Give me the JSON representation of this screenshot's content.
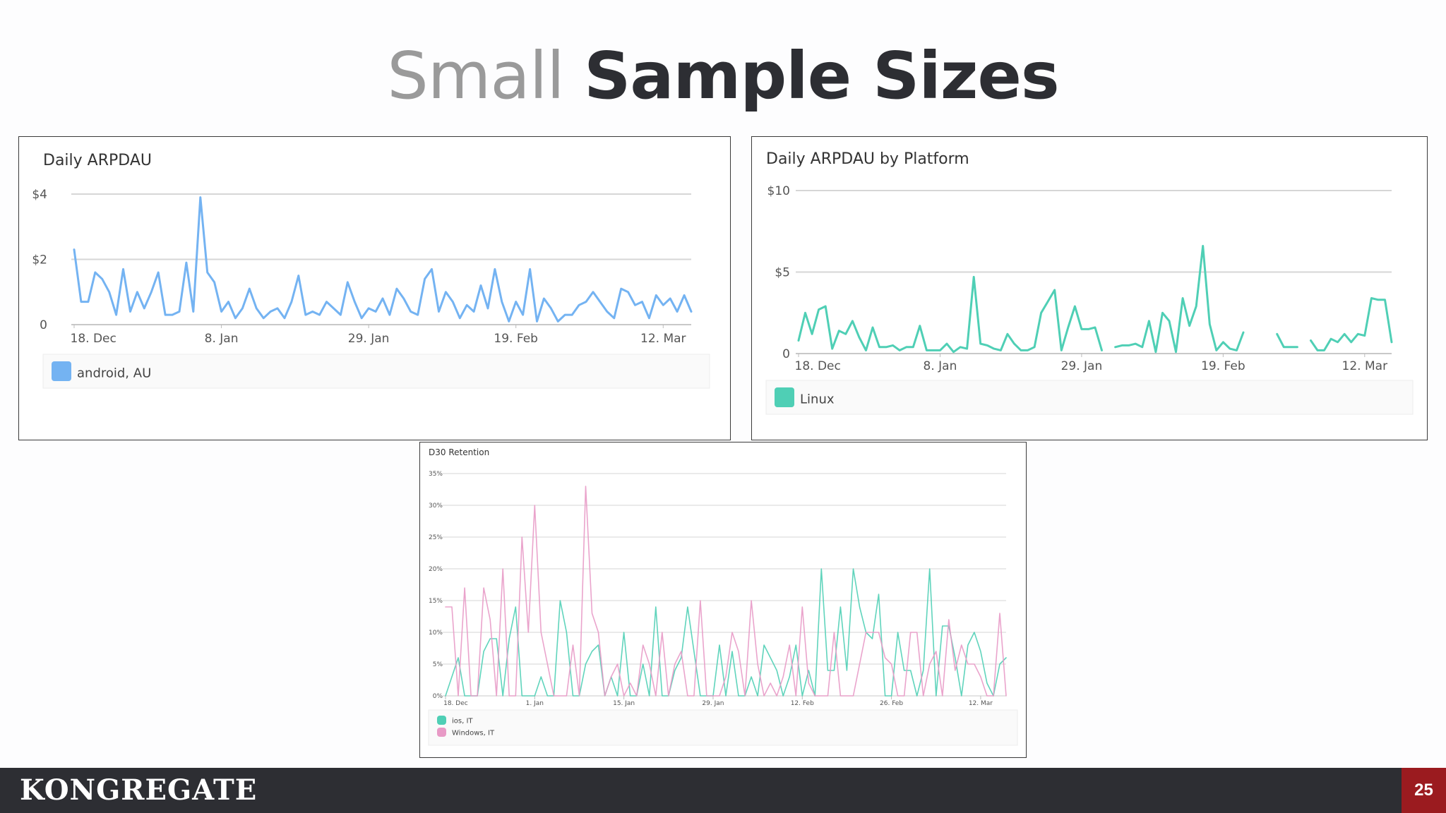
{
  "slide": {
    "title_light": "Small",
    "title_bold": "Sample Sizes",
    "brand": "KONGREGATE",
    "page_number": "25"
  },
  "chart_data": [
    {
      "type": "line",
      "title": "Daily ARPDAU",
      "y_ticks": [
        "0",
        "$2",
        "$4"
      ],
      "ylim": [
        0,
        4
      ],
      "x_ticks": [
        "18. Dec",
        "8. Jan",
        "29. Jan",
        "19. Feb",
        "12. Mar"
      ],
      "x_tick_index": [
        0,
        21,
        42,
        63,
        84
      ],
      "grid": true,
      "legend_position": "bottom",
      "color": "#74b3f2",
      "series": [
        {
          "name": "android, AU",
          "color": "#74b3f2",
          "values": [
            2.3,
            0.7,
            0.7,
            1.6,
            1.4,
            1.0,
            0.3,
            1.7,
            0.4,
            1.0,
            0.5,
            1.0,
            1.6,
            0.3,
            0.3,
            0.4,
            1.9,
            0.4,
            3.9,
            1.6,
            1.3,
            0.4,
            0.7,
            0.2,
            0.5,
            1.1,
            0.5,
            0.2,
            0.4,
            0.5,
            0.2,
            0.7,
            1.5,
            0.3,
            0.4,
            0.3,
            0.7,
            0.5,
            0.3,
            1.3,
            0.7,
            0.2,
            0.5,
            0.4,
            0.8,
            0.3,
            1.1,
            0.8,
            0.4,
            0.3,
            1.4,
            1.7,
            0.4,
            1.0,
            0.7,
            0.2,
            0.6,
            0.4,
            1.2,
            0.5,
            1.7,
            0.7,
            0.1,
            0.7,
            0.3,
            1.7,
            0.1,
            0.8,
            0.5,
            0.1,
            0.3,
            0.3,
            0.6,
            0.7,
            1.0,
            0.7,
            0.4,
            0.2,
            1.1,
            1.0,
            0.6,
            0.7,
            0.2,
            0.9,
            0.6,
            0.8,
            0.4,
            0.9,
            0.4
          ]
        }
      ]
    },
    {
      "type": "line",
      "title": "Daily ARPDAU by Platform",
      "y_ticks": [
        "0",
        "$5",
        "$10"
      ],
      "ylim": [
        0,
        10
      ],
      "x_ticks": [
        "18. Dec",
        "8. Jan",
        "29. Jan",
        "19. Feb",
        "12. Mar"
      ],
      "x_tick_index": [
        0,
        21,
        42,
        63,
        84
      ],
      "grid": true,
      "legend_position": "bottom",
      "color": "#4fcfb5",
      "series": [
        {
          "name": "Linux",
          "color": "#4fcfb5",
          "values": [
            0.8,
            2.5,
            1.2,
            2.7,
            2.9,
            0.3,
            1.4,
            1.2,
            2.0,
            1.0,
            0.2,
            1.6,
            0.4,
            0.4,
            0.5,
            0.2,
            0.4,
            0.4,
            1.7,
            0.2,
            0.2,
            0.2,
            0.6,
            0.1,
            0.4,
            0.3,
            4.7,
            0.6,
            0.5,
            0.3,
            0.2,
            1.2,
            0.6,
            0.2,
            0.2,
            0.4,
            2.5,
            3.2,
            3.9,
            0.2,
            1.6,
            2.9,
            1.5,
            1.5,
            1.6,
            0.2,
            null,
            0.4,
            0.5,
            0.5,
            0.6,
            0.4,
            2.0,
            0.1,
            2.5,
            2.0,
            0.1,
            3.4,
            1.7,
            2.9,
            6.6,
            1.8,
            0.2,
            0.7,
            0.3,
            0.2,
            1.3,
            null,
            null,
            null,
            null,
            1.2,
            0.4,
            0.4,
            0.4,
            null,
            0.8,
            0.2,
            0.2,
            0.9,
            0.7,
            1.2,
            0.7,
            1.2,
            1.1,
            3.4,
            3.3,
            3.3,
            0.7
          ]
        }
      ]
    },
    {
      "type": "line",
      "title": "D30 Retention",
      "y_ticks": [
        "0%",
        "5%",
        "10%",
        "15%",
        "20%",
        "25%",
        "30%",
        "35%"
      ],
      "ylim": [
        0,
        35
      ],
      "x_ticks": [
        "18. Dec",
        "1. Jan",
        "15. Jan",
        "29. Jan",
        "12. Feb",
        "26. Feb",
        "12. Mar"
      ],
      "x_tick_index": [
        0,
        14,
        28,
        42,
        56,
        70,
        84
      ],
      "grid": true,
      "legend_position": "bottom",
      "series": [
        {
          "name": "ios, IT",
          "color": "#4fcfb5",
          "values": [
            0,
            3,
            6,
            0,
            0,
            0,
            7,
            9,
            9,
            0,
            9,
            14,
            0,
            0,
            0,
            3,
            0,
            0,
            15,
            10,
            0,
            0,
            5,
            7,
            8,
            0,
            3,
            0,
            10,
            0,
            0,
            5,
            0,
            14,
            0,
            0,
            4,
            6,
            14,
            7,
            0,
            0,
            0,
            8,
            0,
            7,
            0,
            0,
            3,
            0,
            8,
            6,
            4,
            0,
            3,
            8,
            0,
            4,
            0,
            20,
            4,
            4,
            14,
            4,
            20,
            14,
            10,
            9,
            16,
            0,
            0,
            10,
            4,
            4,
            0,
            4,
            20,
            0,
            11,
            11,
            6,
            0,
            8,
            10,
            7,
            2,
            0,
            5,
            6
          ]
        },
        {
          "name": "Windows, IT",
          "color": "#e89ac6",
          "values": [
            14,
            14,
            0,
            17,
            0,
            0,
            17,
            12,
            0,
            20,
            0,
            0,
            25,
            10,
            30,
            10,
            5,
            0,
            0,
            0,
            8,
            0,
            33,
            13,
            10,
            0,
            3,
            5,
            0,
            2,
            0,
            8,
            5,
            0,
            10,
            0,
            5,
            7,
            0,
            0,
            15,
            0,
            0,
            0,
            3,
            10,
            7,
            0,
            15,
            5,
            0,
            2,
            0,
            3,
            8,
            0,
            14,
            2,
            0,
            0,
            0,
            10,
            0,
            0,
            0,
            5,
            10,
            10,
            10,
            6,
            5,
            0,
            0,
            10,
            10,
            0,
            5,
            7,
            0,
            12,
            4,
            8,
            5,
            5,
            3,
            0,
            0,
            13,
            0
          ]
        }
      ]
    }
  ]
}
